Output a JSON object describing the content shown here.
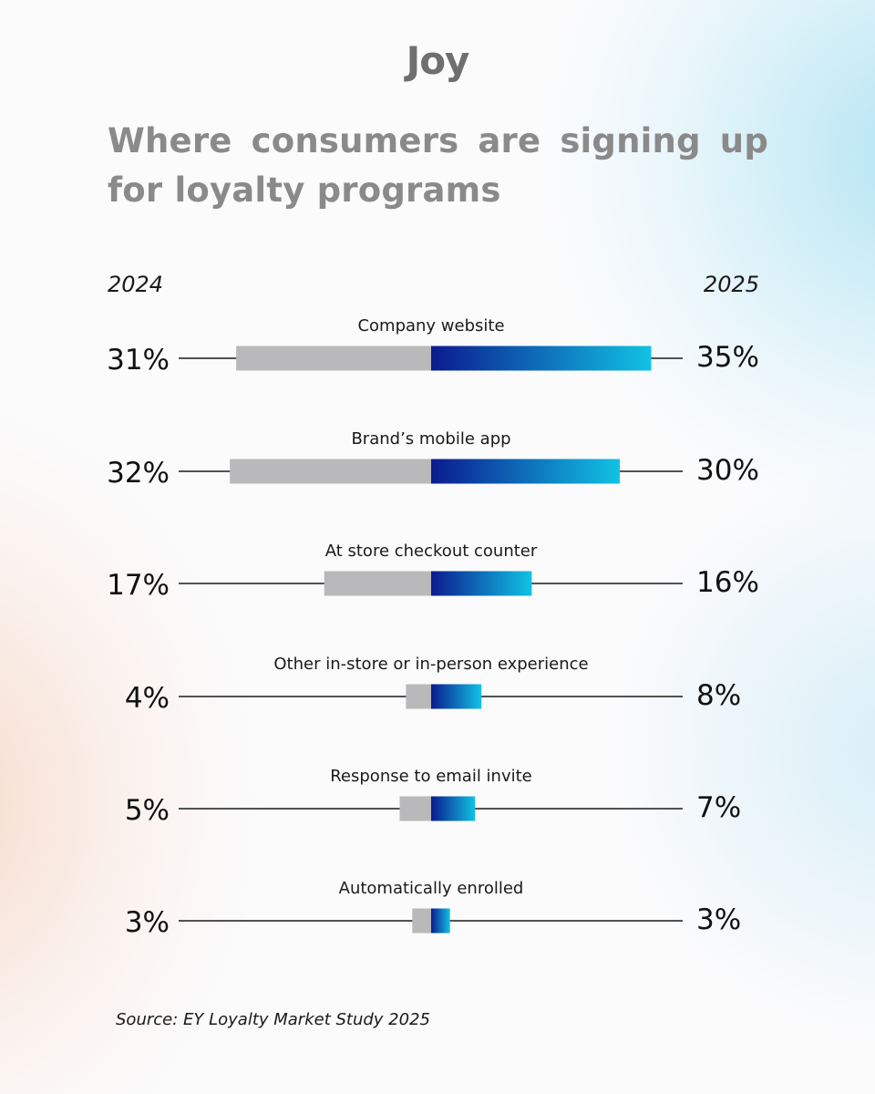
{
  "brand": {
    "logo_text": "Joy"
  },
  "page_title": "Where consumers are signing up for loyalty programs",
  "source": "Source: EY Loyalty Market Study 2025",
  "colors": {
    "bar_2024": "#b9b9bb",
    "bar_2025_start": "#0b1b8f",
    "bar_2025_end": "#11c2e3",
    "axis_line": "#1a1a1a",
    "title": "#8a8a8a"
  },
  "chart_data": {
    "type": "bar",
    "layout": "diverging",
    "categories": [
      "Company website",
      "Brand’s mobile app",
      "At store checkout counter",
      "Other in-store or in-person experience",
      "Response to email invite",
      "Automatically enrolled"
    ],
    "series": [
      {
        "name": "2024",
        "values": [
          31,
          32,
          17,
          4,
          5,
          3
        ],
        "labels": [
          "31%",
          "32%",
          "17%",
          "4%",
          "5%",
          "3%"
        ]
      },
      {
        "name": "2025",
        "values": [
          35,
          30,
          16,
          8,
          7,
          3
        ],
        "labels": [
          "35%",
          "30%",
          "16%",
          "8%",
          "7%",
          "3%"
        ]
      }
    ],
    "left_series_label": "2024",
    "right_series_label": "2025",
    "unit": "%"
  }
}
